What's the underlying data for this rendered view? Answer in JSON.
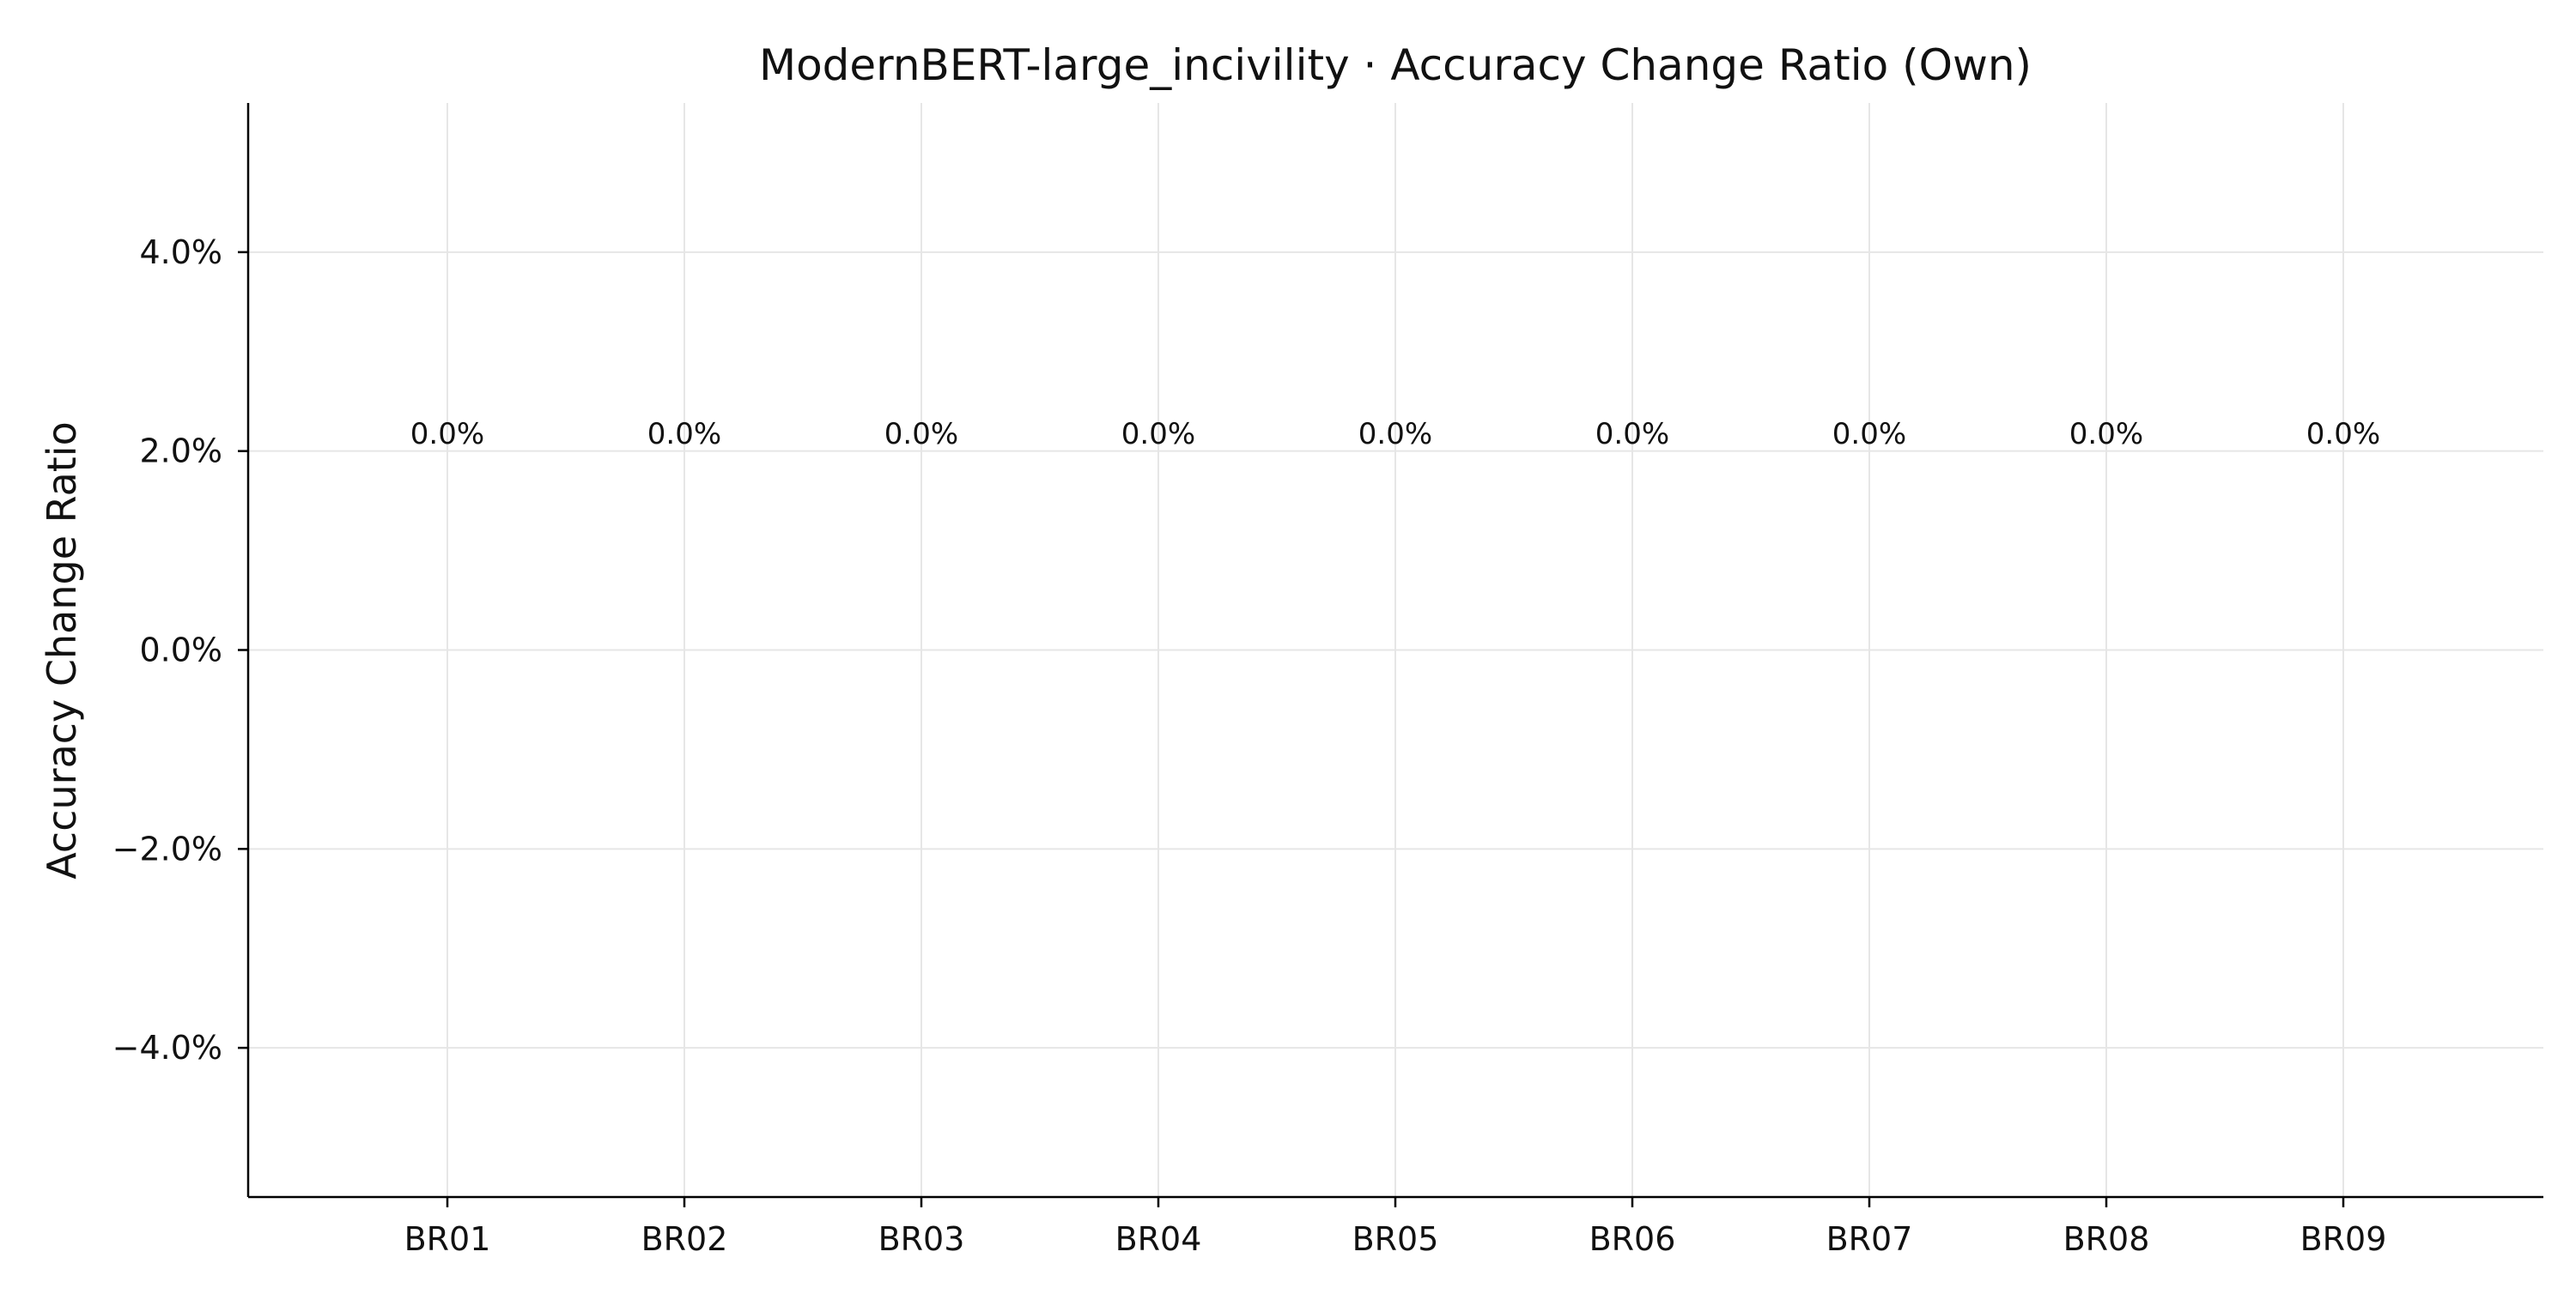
{
  "chart_data": {
    "type": "bar",
    "title": "ModernBERT-large_incivility · Accuracy Change Ratio (Own)",
    "xlabel": "",
    "ylabel": "Accuracy Change Ratio",
    "categories": [
      "BR01",
      "BR02",
      "BR03",
      "BR04",
      "BR05",
      "BR06",
      "BR07",
      "BR08",
      "BR09"
    ],
    "values": [
      0.0,
      0.0,
      0.0,
      0.0,
      0.0,
      0.0,
      0.0,
      0.0,
      0.0
    ],
    "data_labels": [
      "0.0%",
      "0.0%",
      "0.0%",
      "0.0%",
      "0.0%",
      "0.0%",
      "0.0%",
      "0.0%",
      "0.0%"
    ],
    "ylim": [
      -5.5,
      5.5
    ],
    "yticks": [
      -4.0,
      -2.0,
      0.0,
      2.0,
      4.0
    ],
    "ytick_labels": [
      "−4.0%",
      "−2.0%",
      "0.0%",
      "2.0%",
      "4.0%"
    ],
    "grid": true,
    "bar_color": "#4c72b0"
  }
}
